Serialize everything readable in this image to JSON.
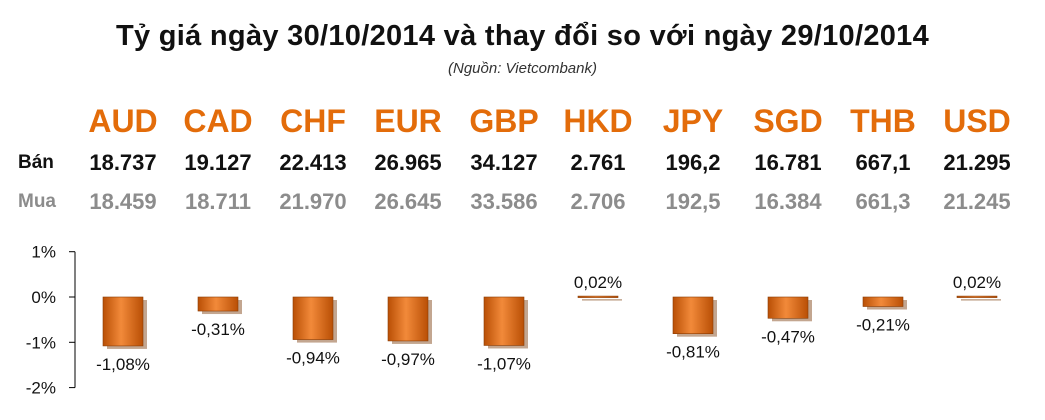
{
  "title": "Tỷ giá ngày 30/10/2014 và thay đổi so với ngày 29/10/2014",
  "source": "(Nguồn: Vietcombank)",
  "row_labels": {
    "sell": "Bán",
    "buy": "Mua"
  },
  "colors": {
    "accent": "#E36C0A",
    "bar_dark": "#B94F05",
    "bar_light": "#F28A3A",
    "buy_text": "#8C8C8C"
  },
  "currencies": [
    {
      "code": "AUD",
      "sell": "18.737",
      "buy": "18.459"
    },
    {
      "code": "CAD",
      "sell": "19.127",
      "buy": "18.711"
    },
    {
      "code": "CHF",
      "sell": "22.413",
      "buy": "21.970"
    },
    {
      "code": "EUR",
      "sell": "26.965",
      "buy": "26.645"
    },
    {
      "code": "GBP",
      "sell": "34.127",
      "buy": "33.586"
    },
    {
      "code": "HKD",
      "sell": "2.761",
      "buy": "2.706"
    },
    {
      "code": "JPY",
      "sell": "196,2",
      "buy": "192,5"
    },
    {
      "code": "SGD",
      "sell": "16.781",
      "buy": "16.384"
    },
    {
      "code": "THB",
      "sell": "667,1",
      "buy": "661,3"
    },
    {
      "code": "USD",
      "sell": "21.295",
      "buy": "21.245"
    }
  ],
  "chart_data": {
    "type": "bar",
    "categories": [
      "AUD",
      "CAD",
      "CHF",
      "EUR",
      "GBP",
      "HKD",
      "JPY",
      "SGD",
      "THB",
      "USD"
    ],
    "values": [
      -1.08,
      -0.31,
      -0.94,
      -0.97,
      -1.07,
      0.02,
      -0.81,
      -0.47,
      -0.21,
      0.02
    ],
    "data_labels": [
      "-1,08%",
      "-0,31%",
      "-0,94%",
      "-0,97%",
      "-1,07%",
      "0,02%",
      "-0,81%",
      "-0,47%",
      "-0,21%",
      "0,02%"
    ],
    "ylim": [
      -2,
      1
    ],
    "yticks": [
      1,
      0,
      -1,
      -2
    ],
    "ytick_labels": [
      "1%",
      "0%",
      "-1%",
      "-2%"
    ],
    "grid": false,
    "legend": "none"
  }
}
